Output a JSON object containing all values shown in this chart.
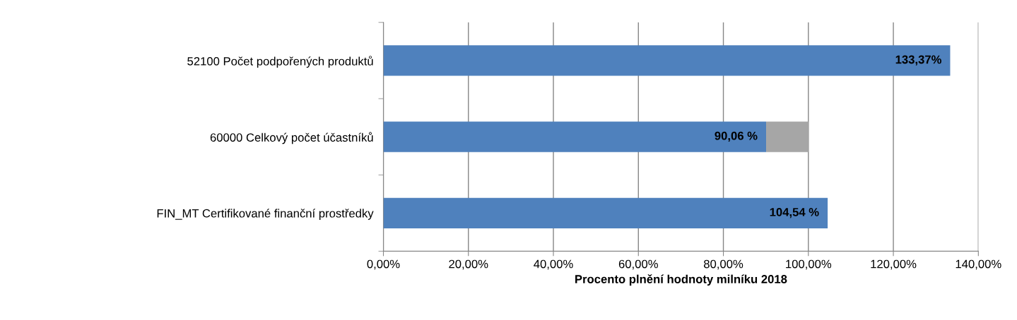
{
  "chart_data": {
    "type": "bar",
    "orientation": "horizontal",
    "stacked": true,
    "categories": [
      "52100 Počet podpořených produktů",
      "60000 Celkový počet účastníků",
      "FIN_MT Certifikované finanční prostředky"
    ],
    "series": [
      {
        "color": "#4f81bd",
        "values": [
          133.37,
          90.06,
          104.54
        ],
        "value_labels": [
          "133,37%",
          "90,06 %",
          "104,54 %"
        ]
      },
      {
        "color": "#a6a6a6",
        "values": [
          null,
          9.94,
          null
        ]
      }
    ],
    "xlabel": "Procento plnění hodnoty milníku 2018",
    "xlim": [
      0,
      140
    ],
    "xticks": [
      {
        "value": 0,
        "label": "0,00%"
      },
      {
        "value": 20,
        "label": "20,00%"
      },
      {
        "value": 40,
        "label": "40,00%"
      },
      {
        "value": 60,
        "label": "60,00%"
      },
      {
        "value": 80,
        "label": "80,00%"
      },
      {
        "value": 100,
        "label": "100,00%"
      },
      {
        "value": 120,
        "label": "120,00%"
      },
      {
        "value": 140,
        "label": "140,00%"
      }
    ],
    "grid": "x"
  }
}
